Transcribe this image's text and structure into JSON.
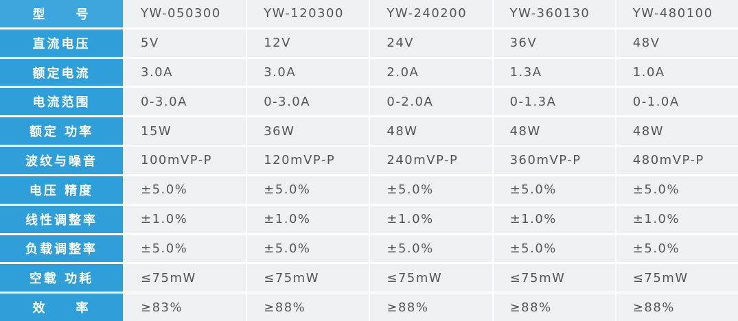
{
  "table": {
    "header": [
      "型　　号",
      "YW-050300",
      "YW-120300",
      "YW-240200",
      "YW-360130",
      "YW-480100"
    ],
    "rows": [
      [
        "直流电压",
        "5V",
        "12V",
        "24V",
        "36V",
        "48V"
      ],
      [
        "额定电流",
        "3.0A",
        "3.0A",
        "2.0A",
        "1.3A",
        "1.0A"
      ],
      [
        "电流范围",
        "0-3.0A",
        "0-3.0A",
        "0-2.0A",
        "0-1.3A",
        "0-1.0A"
      ],
      [
        "额定 功率",
        "15W",
        "36W",
        "48W",
        "48W",
        "48W"
      ],
      [
        "波纹与噪音",
        "100mVP-P",
        "120mVP-P",
        "240mVP-P",
        "360mVP-P",
        "480mVP-P"
      ],
      [
        "电压 精度",
        "±5.0%",
        "±5.0%",
        "±5.0%",
        "±5.0%",
        "±5.0%"
      ],
      [
        "线性调整率",
        "±1.0%",
        "±1.0%",
        "±1.0%",
        "±1.0%",
        "±1.0%"
      ],
      [
        "负载调整率",
        "±5.0%",
        "±5.0%",
        "±5.0%",
        "±5.0%",
        "±5.0%"
      ],
      [
        "空载 功耗",
        "≤75mW",
        "≤75mW",
        "≤75mW",
        "≤75mW",
        "≤75mW"
      ],
      [
        "效　　率",
        "≥83%",
        "≥88%",
        "≥88%",
        "≥88%",
        "≥88%"
      ]
    ]
  }
}
